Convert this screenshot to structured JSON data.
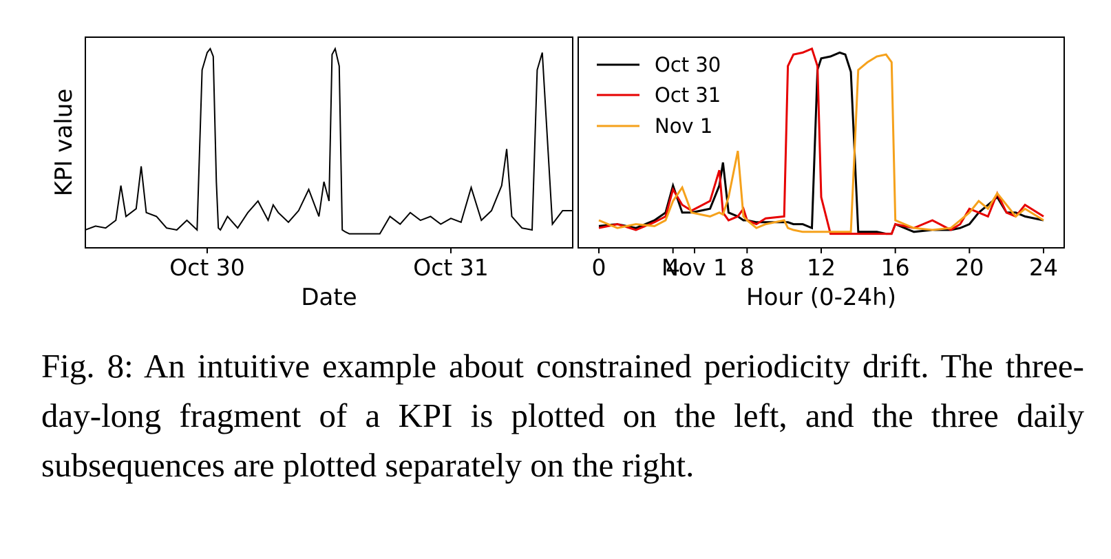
{
  "caption": "Fig. 8: An intuitive example about constrained periodicity drift. The three-day-long fragment of a KPI is plotted on the left, and the three daily subsequences are plotted separately on the right.",
  "chart_data": [
    {
      "type": "line",
      "xlabel": "Date",
      "ylabel": "KPI value",
      "x_ticks": [
        "Oct 30",
        "Oct 31",
        "Nov 1"
      ],
      "x_range_hours": [
        -12,
        36
      ],
      "y_ticks_shown": false,
      "grid": false,
      "series": [
        {
          "name": "",
          "color": "#000000",
          "hours": [
            -12,
            -11,
            -10,
            -9,
            -8.5,
            -8,
            -7,
            -6.5,
            -6,
            -5,
            -4,
            -3,
            -2,
            -1,
            -0.5,
            0,
            0.3,
            0.6,
            0.9,
            1.1,
            1.3,
            1.6,
            2,
            3,
            4,
            5,
            6,
            6.5,
            7,
            8,
            9,
            10,
            11,
            11.5,
            12,
            12.3,
            12.6,
            13,
            13.3,
            13.6,
            14,
            15,
            16,
            17,
            18,
            19,
            20,
            21,
            22,
            23,
            24,
            25,
            26,
            27,
            28,
            29,
            29.5,
            30,
            31,
            32,
            32.5,
            33,
            34,
            35,
            36
          ],
          "values": [
            0.05,
            0.07,
            0.06,
            0.1,
            0.28,
            0.12,
            0.16,
            0.38,
            0.14,
            0.12,
            0.06,
            0.05,
            0.1,
            0.05,
            0.88,
            0.97,
            0.99,
            0.95,
            0.3,
            0.06,
            0.05,
            0.08,
            0.12,
            0.06,
            0.14,
            0.2,
            0.1,
            0.18,
            0.14,
            0.09,
            0.15,
            0.26,
            0.12,
            0.3,
            0.2,
            0.96,
            0.99,
            0.9,
            0.05,
            0.04,
            0.03,
            0.03,
            0.03,
            0.03,
            0.12,
            0.08,
            0.14,
            0.1,
            0.12,
            0.08,
            0.11,
            0.09,
            0.27,
            0.1,
            0.15,
            0.28,
            0.47,
            0.12,
            0.06,
            0.05,
            0.88,
            0.97,
            0.08,
            0.15,
            0.15
          ]
        }
      ]
    },
    {
      "type": "line",
      "xlabel": "Hour (0-24h)",
      "ylabel": "",
      "x": [
        0,
        1,
        2,
        3,
        3.6,
        4,
        4.5,
        5,
        6,
        6.5,
        6.7,
        7,
        7.5,
        7.8,
        8,
        8.5,
        9,
        10,
        10.2,
        10.5,
        11,
        11.5,
        11.8,
        12,
        12.5,
        13,
        13.3,
        13.6,
        14,
        14.5,
        15,
        15.5,
        15.8,
        16,
        17,
        18,
        19,
        19.5,
        20,
        20.5,
        21,
        21.5,
        22,
        22.5,
        23,
        24
      ],
      "xlim": [
        0,
        24
      ],
      "x_ticks": [
        0,
        4,
        8,
        12,
        16,
        20,
        24
      ],
      "legend_position": "top-left",
      "grid": false,
      "series": [
        {
          "name": "Oct 30",
          "color": "#000000",
          "values": [
            0.07,
            0.08,
            0.06,
            0.1,
            0.14,
            0.28,
            0.14,
            0.14,
            0.16,
            0.28,
            0.4,
            0.14,
            0.12,
            0.1,
            0.1,
            0.09,
            0.09,
            0.09,
            0.09,
            0.08,
            0.08,
            0.06,
            0.88,
            0.94,
            0.95,
            0.97,
            0.96,
            0.87,
            0.04,
            0.04,
            0.04,
            0.03,
            0.03,
            0.08,
            0.04,
            0.05,
            0.05,
            0.06,
            0.08,
            0.14,
            0.18,
            0.22,
            0.14,
            0.14,
            0.12,
            0.1
          ]
        },
        {
          "name": "Oct 31",
          "color": "#e60000",
          "values": [
            0.06,
            0.08,
            0.05,
            0.09,
            0.12,
            0.26,
            0.18,
            0.15,
            0.2,
            0.36,
            0.14,
            0.1,
            0.12,
            0.16,
            0.1,
            0.08,
            0.11,
            0.12,
            0.9,
            0.96,
            0.97,
            0.99,
            0.9,
            0.22,
            0.03,
            0.03,
            0.03,
            0.03,
            0.03,
            0.03,
            0.03,
            0.03,
            0.03,
            0.08,
            0.06,
            0.1,
            0.05,
            0.08,
            0.16,
            0.14,
            0.12,
            0.24,
            0.14,
            0.12,
            0.18,
            0.12
          ]
        },
        {
          "name": "Nov 1",
          "color": "#f5a11b",
          "values": [
            0.1,
            0.06,
            0.08,
            0.07,
            0.1,
            0.2,
            0.27,
            0.14,
            0.12,
            0.14,
            0.13,
            0.22,
            0.46,
            0.12,
            0.1,
            0.06,
            0.08,
            0.1,
            0.06,
            0.05,
            0.04,
            0.04,
            0.04,
            0.04,
            0.04,
            0.04,
            0.04,
            0.04,
            0.88,
            0.92,
            0.95,
            0.96,
            0.92,
            0.1,
            0.06,
            0.05,
            0.06,
            0.1,
            0.14,
            0.2,
            0.16,
            0.24,
            0.18,
            0.12,
            0.16,
            0.1
          ]
        }
      ]
    }
  ]
}
